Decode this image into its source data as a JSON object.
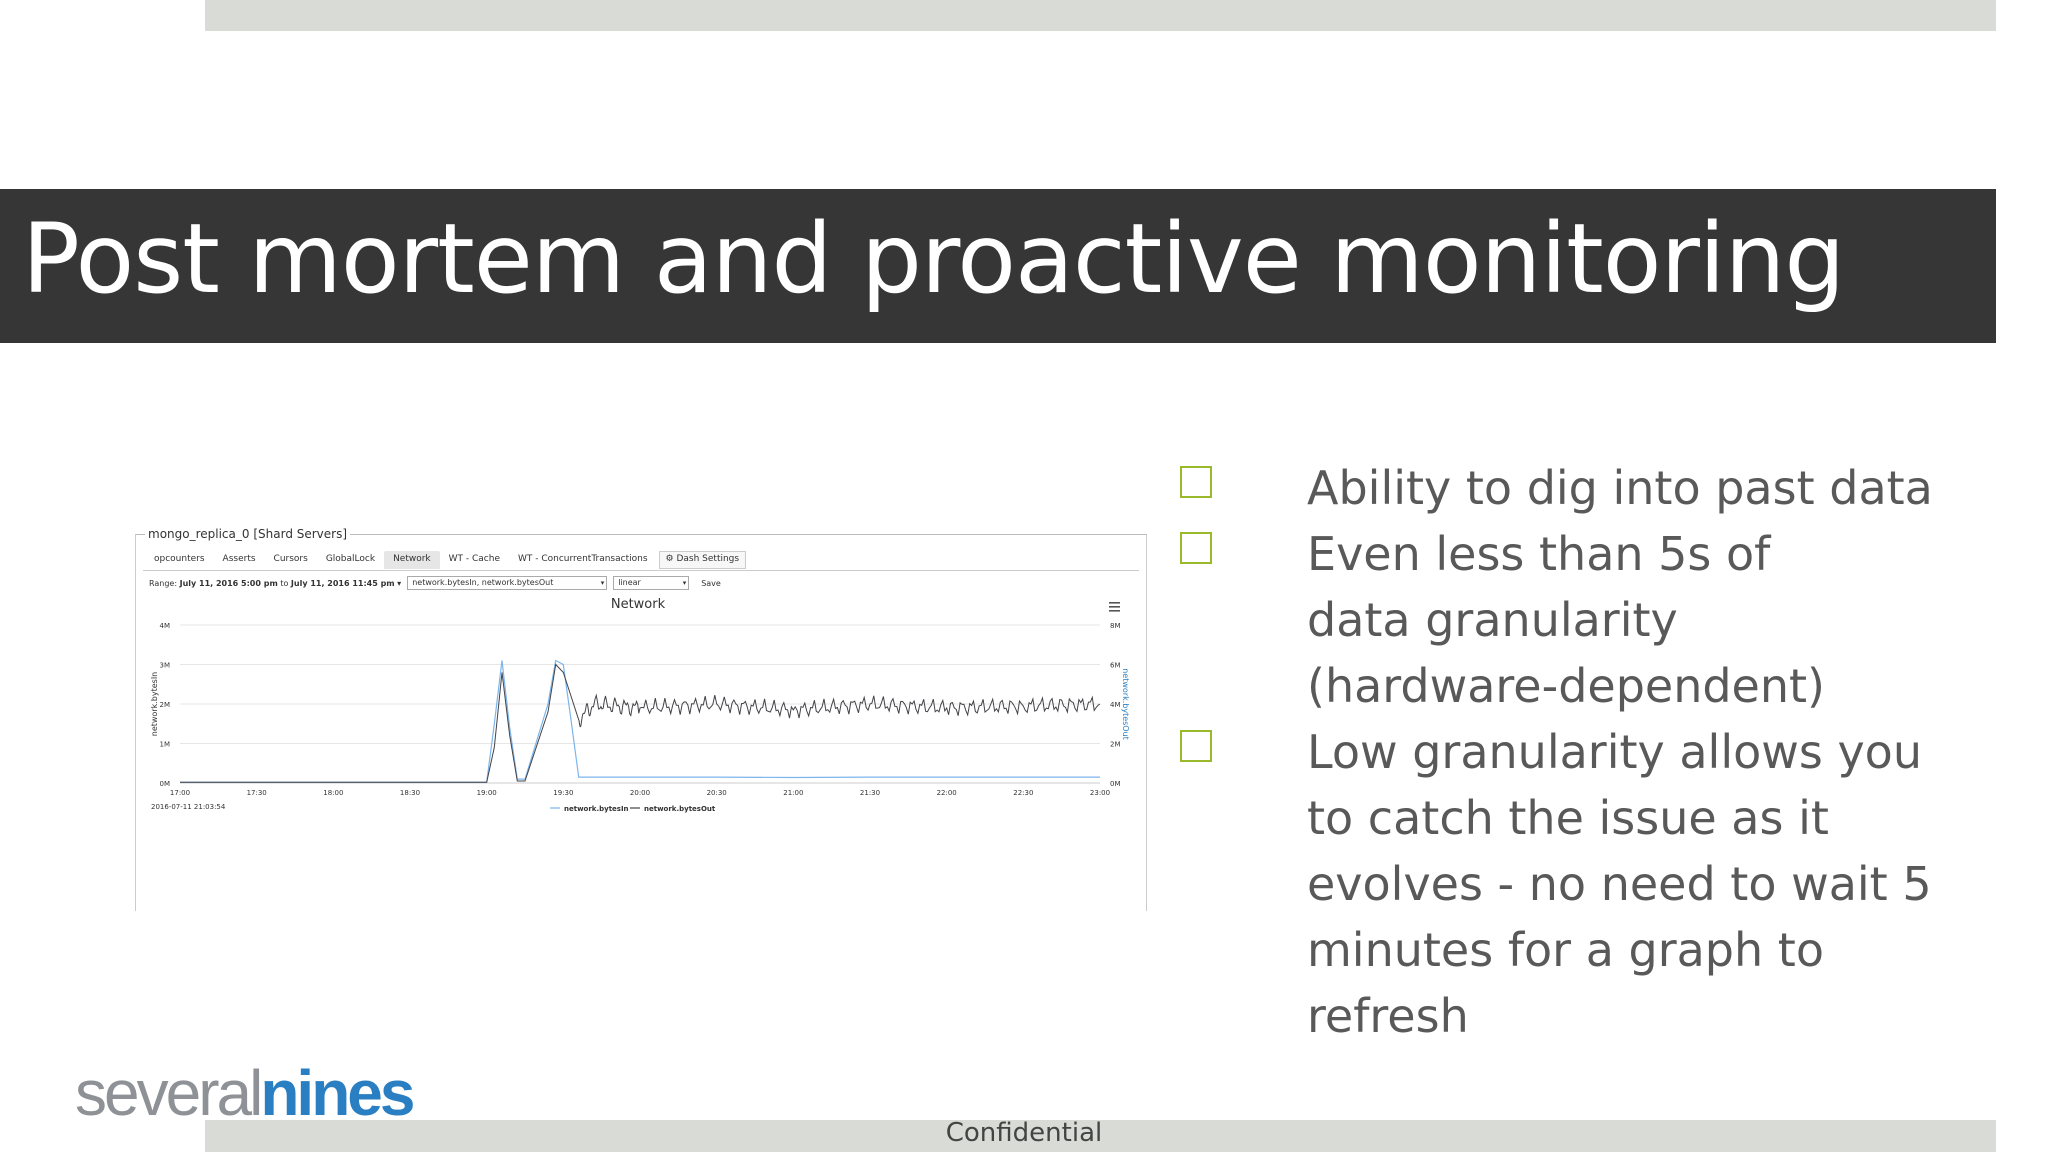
{
  "slide": {
    "title": "Post mortem and proactive monitoring",
    "footer": "Confidential",
    "logo_part1": "several",
    "logo_part2": "nines",
    "bullets": [
      "Ability to dig into past data",
      "Even less than 5s of data granularity (hardware-dependent)",
      "Low granularity allows you to catch the issue as it evolves - no need to wait 5 minutes for a graph to refresh"
    ],
    "colors": {
      "title_band": "#363636",
      "checkbox": "#9ab92b",
      "logo_gray": "#8e9195",
      "logo_blue": "#2a7ec2",
      "bars": "#d9dbd6"
    }
  },
  "dashboard": {
    "group_title": "mongo_replica_0 [Shard Servers]",
    "tabs": [
      "opcounters",
      "Asserts",
      "Cursors",
      "GlobalLock",
      "Network",
      "WT - Cache",
      "WT - ConcurrentTransactions"
    ],
    "active_tab": "Network",
    "dash_settings": "Dash Settings",
    "range_label": "Range:",
    "range_value": "July 11, 2016 5:00 pm",
    "range_to": "to",
    "range_end": "July 11, 2016 11:45 pm",
    "metrics_select": "network.bytesIn, network.bytesOut",
    "scale_select": "linear",
    "save": "Save",
    "timestamp": "2016-07-11 21:03:54"
  },
  "chart_data": {
    "type": "line",
    "title": "Network",
    "x_ticks": [
      "17:00",
      "17:30",
      "18:00",
      "18:30",
      "19:00",
      "19:30",
      "20:00",
      "20:30",
      "21:00",
      "21:30",
      "22:00",
      "22:30",
      "23:00"
    ],
    "y_left_ticks": [
      "0M",
      "1M",
      "2M",
      "3M",
      "4M"
    ],
    "y_right_ticks": [
      "0M",
      "2M",
      "4M",
      "6M",
      "8M"
    ],
    "y_left_label": "network.bytesIn",
    "y_right_label": "network.bytesOut",
    "ylim_left": [
      0,
      4
    ],
    "ylim_right": [
      0,
      8
    ],
    "legend": "bottom-center",
    "series": [
      {
        "name": "network.bytesIn",
        "color": "#7cb5ec",
        "x": [
          17.0,
          18.5,
          19.0,
          19.05,
          19.1,
          19.15,
          19.2,
          19.25,
          19.4,
          19.45,
          19.5,
          19.55,
          19.6,
          19.7,
          20.0,
          20.5,
          21.0,
          21.5,
          22.0,
          22.5,
          23.0
        ],
        "y": [
          0.02,
          0.02,
          0.02,
          1.5,
          3.1,
          1.4,
          0.1,
          0.1,
          2.0,
          3.1,
          3.0,
          1.6,
          0.15,
          0.15,
          0.15,
          0.15,
          0.14,
          0.15,
          0.15,
          0.15,
          0.15
        ]
      },
      {
        "name": "network.bytesOut",
        "color": "#434348",
        "x": [
          17.0,
          18.5,
          19.0,
          19.05,
          19.1,
          19.15,
          19.2,
          19.25,
          19.4,
          19.45,
          19.5,
          19.55,
          19.6,
          19.7,
          20.0,
          20.5,
          21.0,
          21.5,
          22.0,
          22.5,
          23.0
        ],
        "y": [
          0.02,
          0.02,
          0.02,
          0.9,
          2.8,
          1.2,
          0.05,
          0.05,
          1.8,
          3.0,
          2.8,
          2.2,
          1.6,
          2.0,
          1.9,
          2.0,
          1.85,
          2.0,
          1.9,
          1.95,
          2.0
        ]
      }
    ]
  }
}
